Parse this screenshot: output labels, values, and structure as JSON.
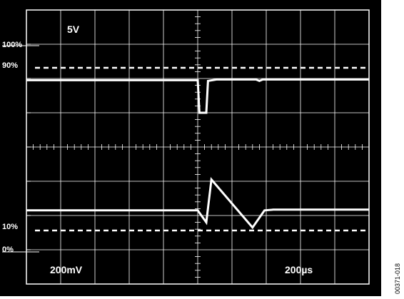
{
  "figure_id": "00371-018",
  "chart_data": {
    "type": "line",
    "title": "",
    "channel_label": "5V",
    "vertical_scale_label": "200mV",
    "time_scale_label": "200µs",
    "reference_levels": [
      {
        "label": "100%"
      },
      {
        "label": "90%"
      },
      {
        "label": "10%"
      },
      {
        "label": "0%"
      }
    ],
    "grid": {
      "divisions_x": 10,
      "divisions_y": 8,
      "minor_ticks_per_division": 5
    },
    "series": [
      {
        "x": [
          -5.0,
          0.0,
          0.05,
          0.25,
          0.3,
          0.55,
          1.7,
          1.8,
          1.9,
          2.0,
          5.0
        ],
        "y": [
          1.95,
          1.95,
          1.0,
          1.0,
          1.93,
          1.97,
          1.97,
          1.93,
          1.97,
          1.97,
          1.97
        ]
      },
      {
        "x": [
          -5.0,
          0.0,
          0.25,
          0.4,
          1.6,
          1.95,
          2.2,
          5.0
        ],
        "y": [
          -1.85,
          -1.85,
          -2.2,
          -0.95,
          -2.35,
          -1.85,
          -1.83,
          -1.83
        ]
      }
    ],
    "xlim": [
      -5,
      5
    ],
    "ylim": [
      -4,
      4
    ]
  },
  "colors": {
    "screen": "#000000",
    "grid": "#ffffff",
    "trace": "#ffffff",
    "paper": "#ffffff"
  }
}
